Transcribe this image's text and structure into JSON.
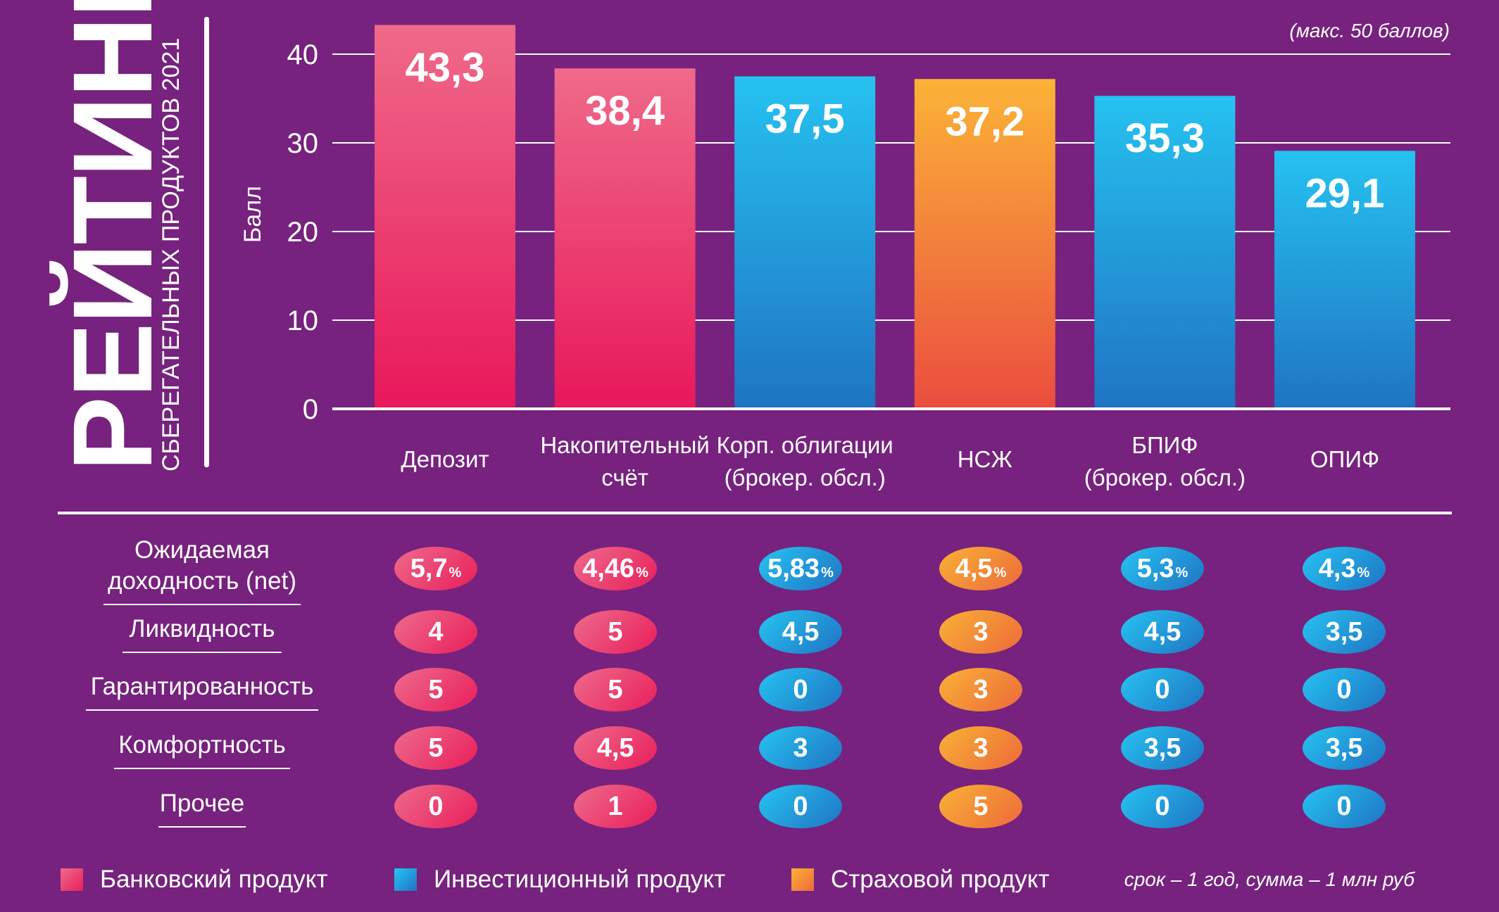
{
  "title": "РЕЙТИНГ",
  "subtitle": "СБЕРЕГАТЕЛЬНЫХ ПРОДУКТОВ 2021",
  "note_top": "(макс. 50 баллов)",
  "footnote": "срок – 1 год, сумма – 1 млн руб",
  "chart_data": {
    "type": "bar",
    "ylabel": "Балл",
    "ylim": [
      0,
      45
    ],
    "yticks": [
      "0",
      "10",
      "20",
      "30",
      "40"
    ],
    "ytick_values": [
      0,
      10,
      20,
      30,
      40
    ],
    "grid": true,
    "categories": [
      [
        "Депозит"
      ],
      [
        "Накопительный",
        "счёт"
      ],
      [
        "Корп. облигации",
        "(брокер. обсл.)"
      ],
      [
        "НСЖ"
      ],
      [
        "БПИФ",
        "(брокер. обсл.)"
      ],
      [
        "ОПИФ"
      ]
    ],
    "values": [
      43.3,
      38.4,
      37.5,
      37.2,
      35.3,
      29.1
    ],
    "value_labels": [
      "43,3",
      "38,4",
      "37,5",
      "37,2",
      "35,3",
      "29,1"
    ],
    "product_types": [
      "bank",
      "bank",
      "invest",
      "insur",
      "invest",
      "invest"
    ]
  },
  "colors": {
    "background": "#76227e",
    "bank": [
      "#ef6a8a",
      "#e8185a"
    ],
    "invest": [
      "#26c2f0",
      "#1f74c2"
    ],
    "insur": [
      "#fbb337",
      "#ea4d3f"
    ]
  },
  "metrics": {
    "labels": [
      "Ожидаемая\nдоходность (net)",
      "Ликвидность",
      "Гарантированность",
      "Комфортность",
      "Прочее"
    ],
    "rows": [
      [
        "5,7",
        "4,46",
        "5,83",
        "4,5",
        "5,3",
        "4,3"
      ],
      [
        "4",
        "5",
        "4,5",
        "3",
        "4,5",
        "3,5"
      ],
      [
        "5",
        "5",
        "0",
        "3",
        "0",
        "0"
      ],
      [
        "5",
        "4,5",
        "3",
        "3",
        "3,5",
        "3,5"
      ],
      [
        "0",
        "1",
        "0",
        "5",
        "0",
        "0"
      ]
    ],
    "percent_sign": "%"
  },
  "legend": [
    {
      "label": "Банковский продукт",
      "type": "bank"
    },
    {
      "label": "Инвестиционный продукт",
      "type": "invest"
    },
    {
      "label": "Страховой продукт",
      "type": "insur"
    }
  ]
}
